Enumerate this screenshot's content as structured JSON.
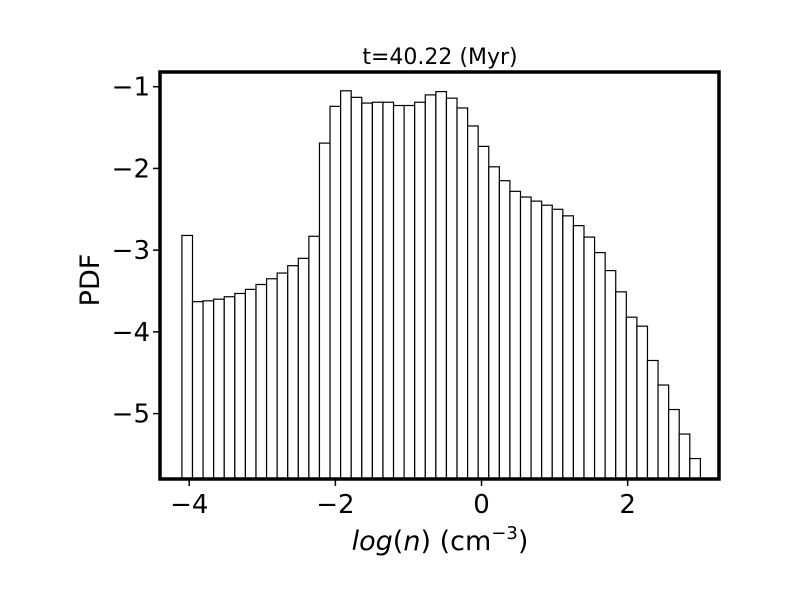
{
  "chart_data": {
    "type": "bar",
    "title": "t=40.22 (Myr)",
    "xlabel": {
      "func": "log",
      "open": "(",
      "var": "n",
      "close": ")",
      "unit_base": " (cm",
      "unit_exp": "−3",
      "unit_close": ")"
    },
    "ylabel": "PDF",
    "xlim": [
      -4.4,
      3.25
    ],
    "ylim": [
      -5.8,
      -0.82
    ],
    "x_ticks": [
      -4,
      -2,
      0,
      2
    ],
    "x_tick_labels": [
      "−4",
      "−2",
      "0",
      "2"
    ],
    "y_ticks": [
      -5,
      -4,
      -3,
      -2,
      -1
    ],
    "y_tick_labels": [
      "−5",
      "−4",
      "−3",
      "−2",
      "−1"
    ],
    "grid": false,
    "bar_fill": "#ffffff",
    "bar_edge": "#000000",
    "bin_start": -4.1,
    "bin_width": 0.1448,
    "values": [
      -2.82,
      -3.63,
      -3.62,
      -3.6,
      -3.57,
      -3.53,
      -3.48,
      -3.42,
      -3.35,
      -3.28,
      -3.19,
      -3.1,
      -2.83,
      -1.69,
      -1.24,
      -1.05,
      -1.13,
      -1.2,
      -1.19,
      -1.19,
      -1.23,
      -1.23,
      -1.19,
      -1.1,
      -1.06,
      -1.14,
      -1.26,
      -1.48,
      -1.73,
      -1.98,
      -2.15,
      -2.28,
      -2.35,
      -2.4,
      -2.45,
      -2.5,
      -2.58,
      -2.7,
      -2.84,
      -3.03,
      -3.25,
      -3.51,
      -3.82,
      -3.93,
      -4.35,
      -4.65,
      -4.95,
      -5.25,
      -5.55
    ]
  }
}
